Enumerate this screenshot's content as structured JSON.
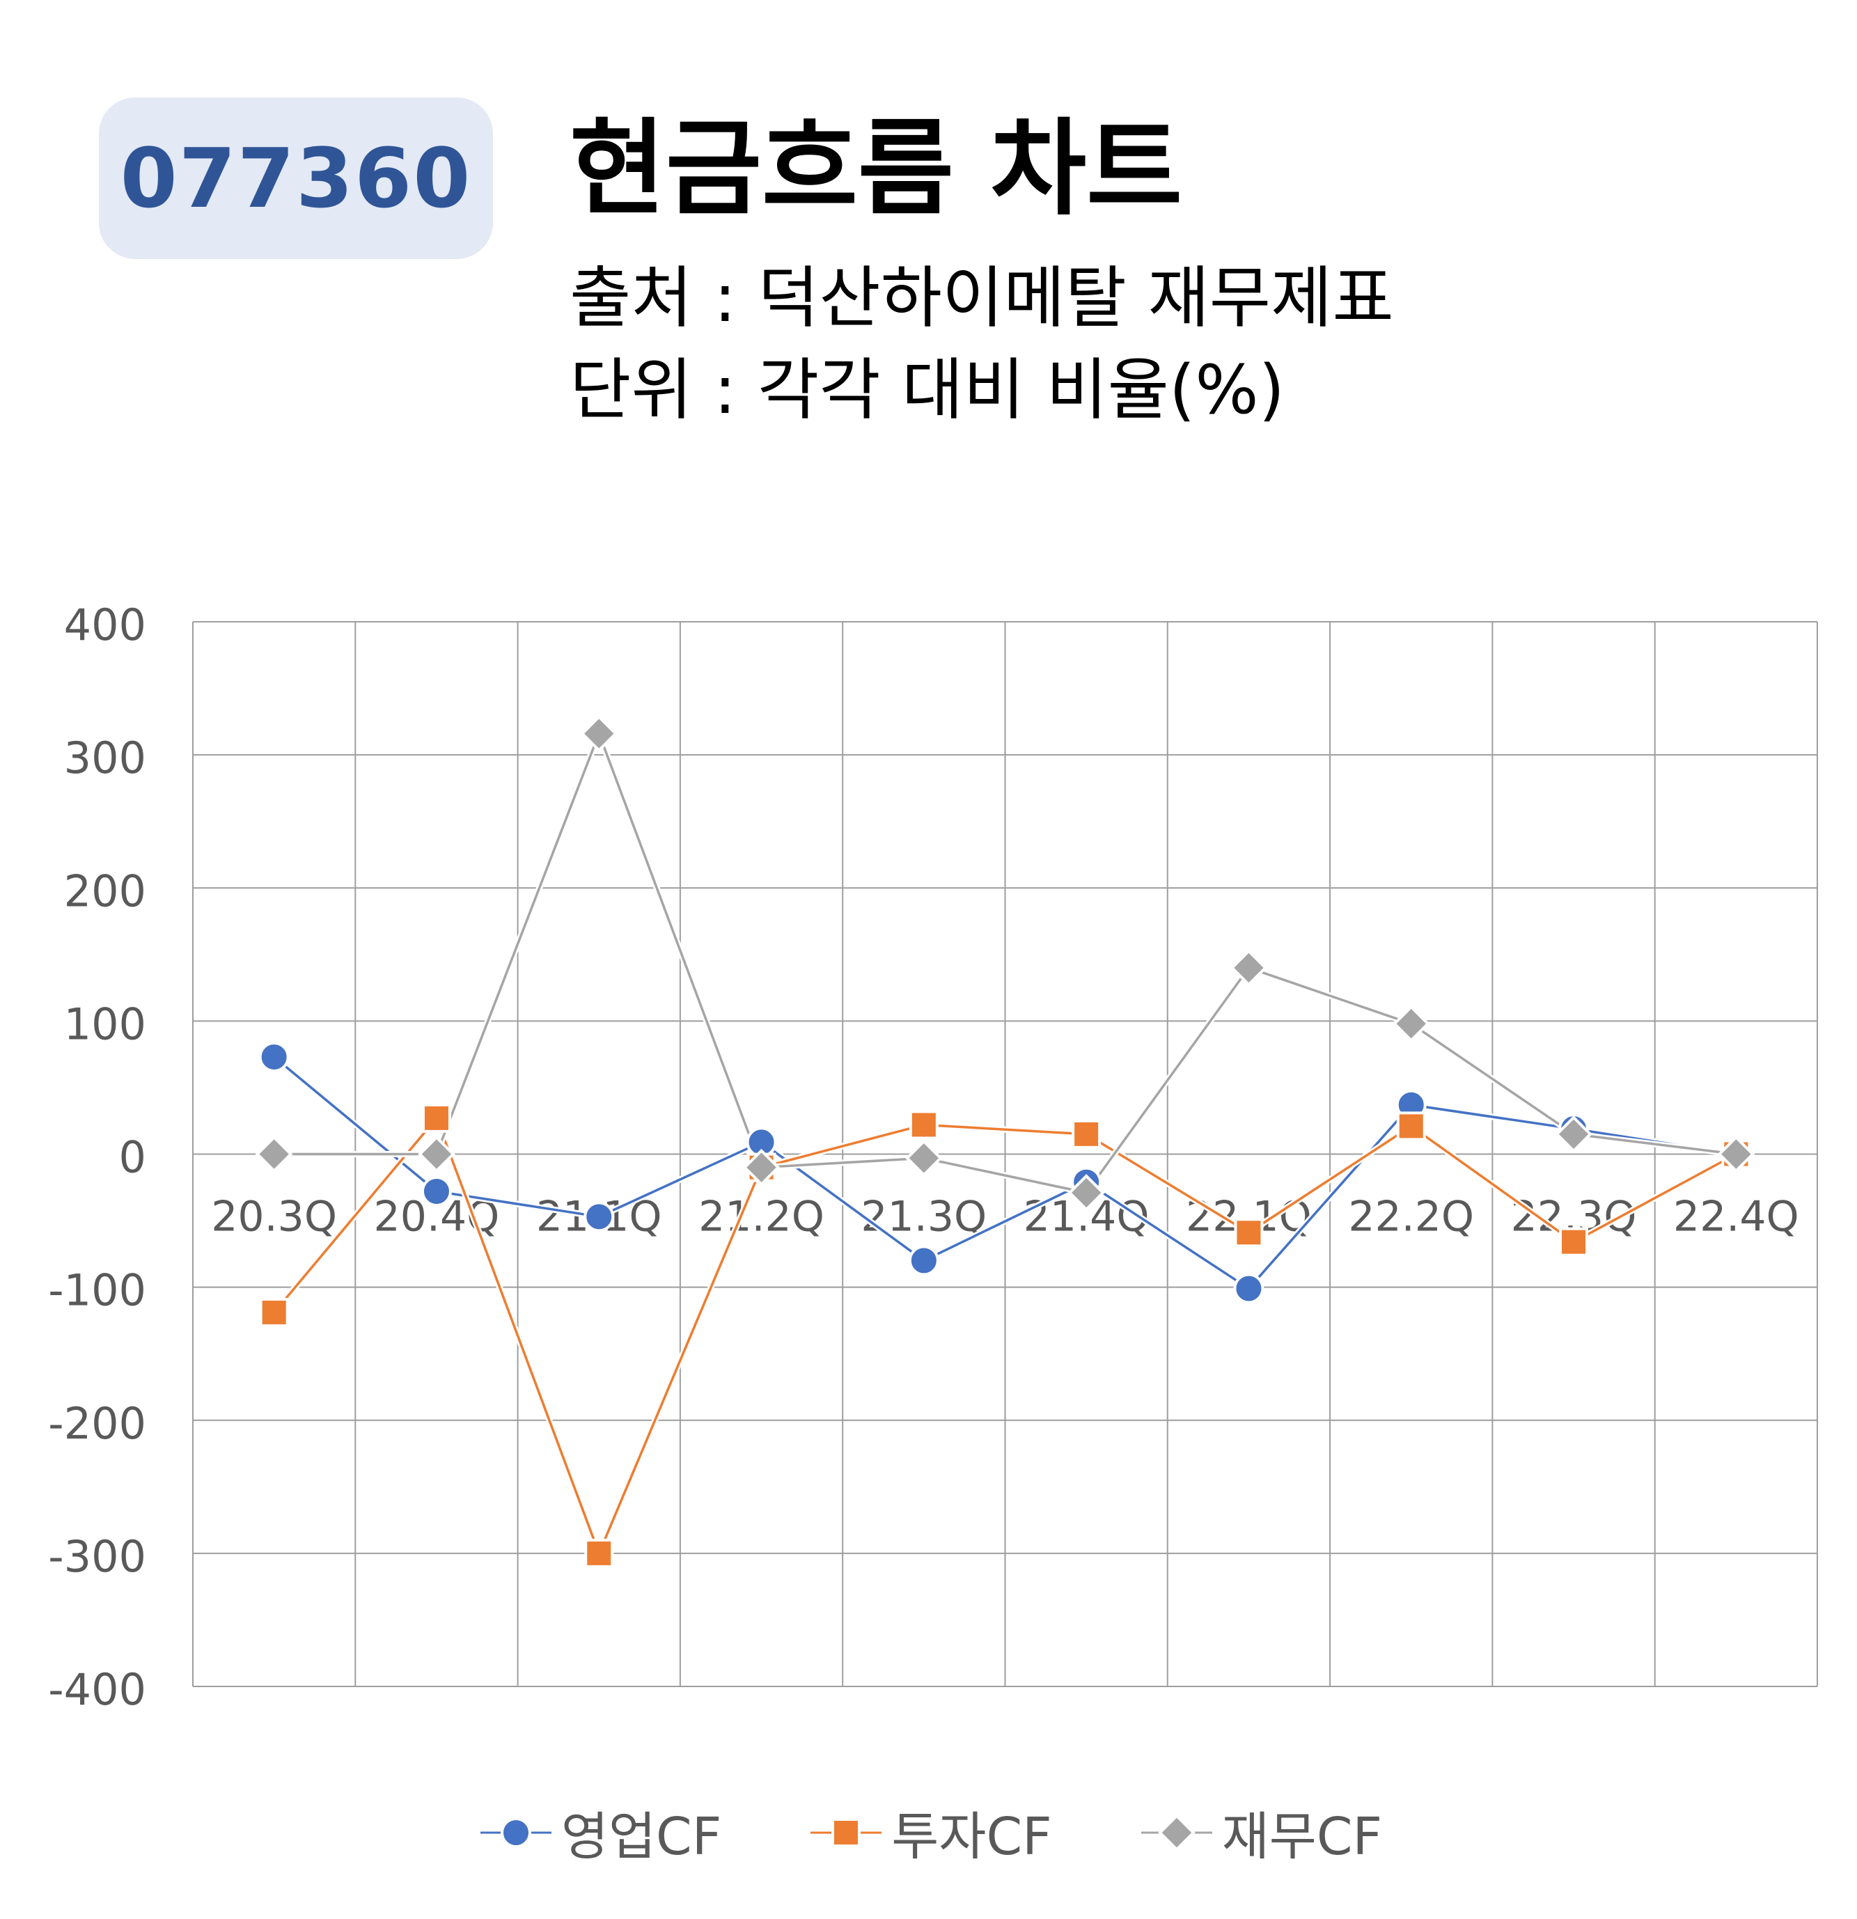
{
  "header": {
    "code": "077360",
    "title": "현금흐름 차트",
    "source": "출처 : 덕산하이메탈 재무제표",
    "unit": "단위 : 각각 대비 비율(%)"
  },
  "colors": {
    "badge_bg": "#e3e9f5",
    "badge_text": "#2f5597",
    "grid": "#9e9e9e",
    "axis_text": "#595959"
  },
  "chart_data": {
    "type": "line",
    "categories": [
      "20.3Q",
      "20.4Q",
      "21.1Q",
      "21.2Q",
      "21.3Q",
      "21.4Q",
      "22.1Q",
      "22.2Q",
      "22.3Q",
      "22.4Q"
    ],
    "ylim": [
      -400,
      400
    ],
    "yticks": [
      "400",
      "300",
      "200",
      "100",
      "0",
      "-100",
      "-200",
      "-300",
      "-400"
    ],
    "grid": true,
    "legend_position": "bottom",
    "series": [
      {
        "name": "영업CF",
        "color": "#4472c4",
        "marker": "circle",
        "values": [
          73,
          -28,
          -47,
          9,
          -80,
          -21,
          -101,
          37,
          19,
          0
        ]
      },
      {
        "name": "투자CF",
        "color": "#ed7d31",
        "marker": "square",
        "values": [
          -119,
          27,
          -300,
          -10,
          22,
          15,
          -59,
          21,
          -66,
          0
        ]
      },
      {
        "name": "재무CF",
        "color": "#a5a5a5",
        "marker": "diamond",
        "values": [
          0,
          0,
          316,
          -10,
          -3,
          -29,
          140,
          98,
          15,
          0
        ]
      }
    ]
  }
}
